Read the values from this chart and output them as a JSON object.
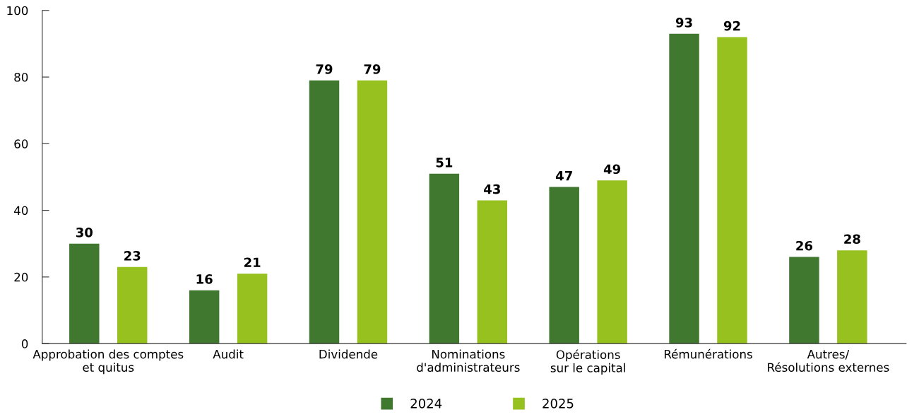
{
  "chart_data": {
    "type": "bar",
    "categories": [
      "Approbation des comptes\net quitus",
      "Audit",
      "Dividende",
      "Nominations\nd'administrateurs",
      "Opérations\nsur le capital",
      "Rémunérations",
      "Autres/\nRésolutions externes"
    ],
    "series": [
      {
        "name": "2024",
        "color": "#41782f",
        "values": [
          30,
          16,
          79,
          51,
          47,
          93,
          26
        ]
      },
      {
        "name": "2025",
        "color": "#96c11f",
        "values": [
          23,
          21,
          79,
          43,
          49,
          92,
          28
        ]
      }
    ],
    "ylim": [
      0,
      100
    ],
    "yticks": [
      0,
      20,
      40,
      60,
      80,
      100
    ],
    "data_labels": true,
    "grid": false,
    "legend": "bottom"
  }
}
